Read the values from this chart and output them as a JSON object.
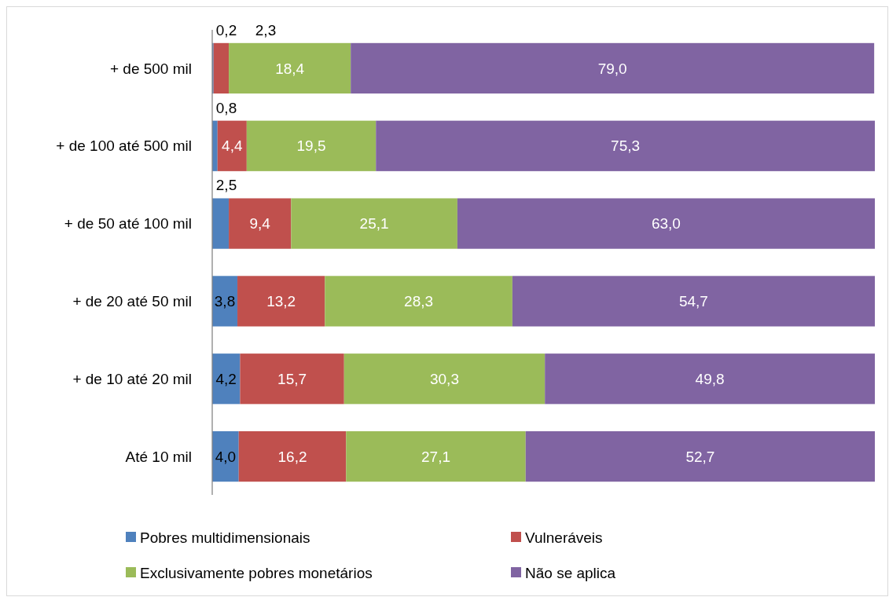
{
  "chart_data": {
    "type": "bar",
    "orientation": "horizontal",
    "stacked": true,
    "legend": "bottom",
    "tick_labels": "y",
    "categories": [
      "+ de 500 mil",
      "+ de 100 até 500 mil",
      "+ de 50 até 100 mil",
      "+ de 20 até 50 mil",
      "+ de 10 até 20 mil",
      "Até 10 mil"
    ],
    "series": [
      {
        "name": "Pobres multidimensionais",
        "color": "#4f81bd",
        "values": [
          0.2,
          0.8,
          2.5,
          3.8,
          4.2,
          4.0
        ],
        "value_labels": [
          "0,2",
          "0,8",
          "2,5",
          "3,8",
          "4,2",
          "4,0"
        ]
      },
      {
        "name": "Vulneráveis",
        "color": "#c0504d",
        "values": [
          2.3,
          4.4,
          9.4,
          13.2,
          15.7,
          16.2
        ],
        "value_labels": [
          "2,3",
          "4,4",
          "9,4",
          "13,2",
          "15,7",
          "16,2"
        ]
      },
      {
        "name": "Exclusivamente pobres monetários",
        "color": "#9bbb59",
        "values": [
          18.4,
          19.5,
          25.1,
          28.3,
          30.3,
          27.1
        ],
        "value_labels": [
          "18,4",
          "19,5",
          "25,1",
          "28,3",
          "30,3",
          "27,1"
        ]
      },
      {
        "name": "Não se aplica",
        "color": "#8064a2",
        "values": [
          79.0,
          75.3,
          63.0,
          54.7,
          49.8,
          52.7
        ],
        "value_labels": [
          "79,0",
          "75,3",
          "63,0",
          "54,7",
          "49,8",
          "52,7"
        ]
      }
    ]
  }
}
